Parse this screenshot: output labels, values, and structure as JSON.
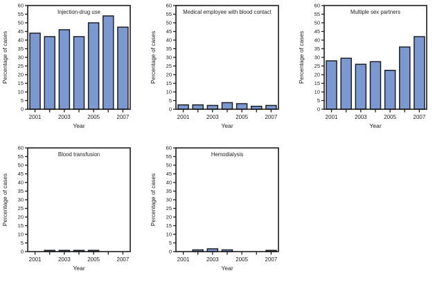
{
  "figure": {
    "background": "#ffffff",
    "bar_fill": "#7c98d0",
    "bar_stroke": "#1c1f26",
    "axis_color": "#1a1a1a",
    "text_color": "#1a1a1a"
  },
  "chart_data": [
    {
      "type": "bar",
      "title": "Injection-drug use",
      "xlabel": "Year",
      "ylabel": "Percentage of cases",
      "ylim": [
        0,
        60
      ],
      "ytick_step": 5,
      "grid": false,
      "legend": "none",
      "categories": [
        "2001",
        "2002",
        "2003",
        "2004",
        "2005",
        "2006",
        "2007"
      ],
      "xtick_labels": [
        "2001",
        "",
        "2003",
        "",
        "2005",
        "",
        "2007"
      ],
      "values": [
        44,
        42,
        46,
        42,
        50,
        54,
        47.5
      ]
    },
    {
      "type": "bar",
      "title": "Medical employee with blood contact",
      "xlabel": "Year",
      "ylabel": "Percentage of cases",
      "ylim": [
        0,
        60
      ],
      "ytick_step": 5,
      "grid": false,
      "legend": "none",
      "categories": [
        "2001",
        "2002",
        "2003",
        "2004",
        "2005",
        "2006",
        "2007"
      ],
      "xtick_labels": [
        "2001",
        "",
        "2003",
        "",
        "2005",
        "",
        "2007"
      ],
      "values": [
        2.5,
        2.5,
        2.2,
        3.8,
        3.2,
        1.7,
        2.2
      ]
    },
    {
      "type": "bar",
      "title": "Multiple sex partners",
      "xlabel": "Year",
      "ylabel": "Percentage of cases",
      "ylim": [
        0,
        60
      ],
      "ytick_step": 5,
      "grid": false,
      "legend": "none",
      "categories": [
        "2001",
        "2002",
        "2003",
        "2004",
        "2005",
        "2006",
        "2007"
      ],
      "xtick_labels": [
        "2001",
        "",
        "2003",
        "",
        "2005",
        "",
        "2007"
      ],
      "values": [
        28,
        29.5,
        26,
        27.5,
        22.5,
        36,
        42
      ]
    },
    {
      "type": "bar",
      "title": "Blood transfusion",
      "xlabel": "Year",
      "ylabel": "Percentage of cases",
      "ylim": [
        0,
        60
      ],
      "ytick_step": 5,
      "grid": false,
      "legend": "none",
      "categories": [
        "2001",
        "2002",
        "2003",
        "2004",
        "2005",
        "2006",
        "2007"
      ],
      "xtick_labels": [
        "2001",
        "",
        "2003",
        "",
        "2005",
        "",
        "2007"
      ],
      "values": [
        0,
        0.7,
        0.7,
        0.7,
        0.7,
        0,
        0
      ]
    },
    {
      "type": "bar",
      "title": "Hemodialysis",
      "xlabel": "Year",
      "ylabel": "Percentage of cases",
      "ylim": [
        0,
        60
      ],
      "ytick_step": 5,
      "grid": false,
      "legend": "none",
      "categories": [
        "2001",
        "2002",
        "2003",
        "2004",
        "2005",
        "2006",
        "2007"
      ],
      "xtick_labels": [
        "2001",
        "",
        "2003",
        "",
        "2005",
        "",
        "2007"
      ],
      "values": [
        0,
        1,
        1.6,
        1,
        0,
        0,
        0.7
      ]
    }
  ]
}
